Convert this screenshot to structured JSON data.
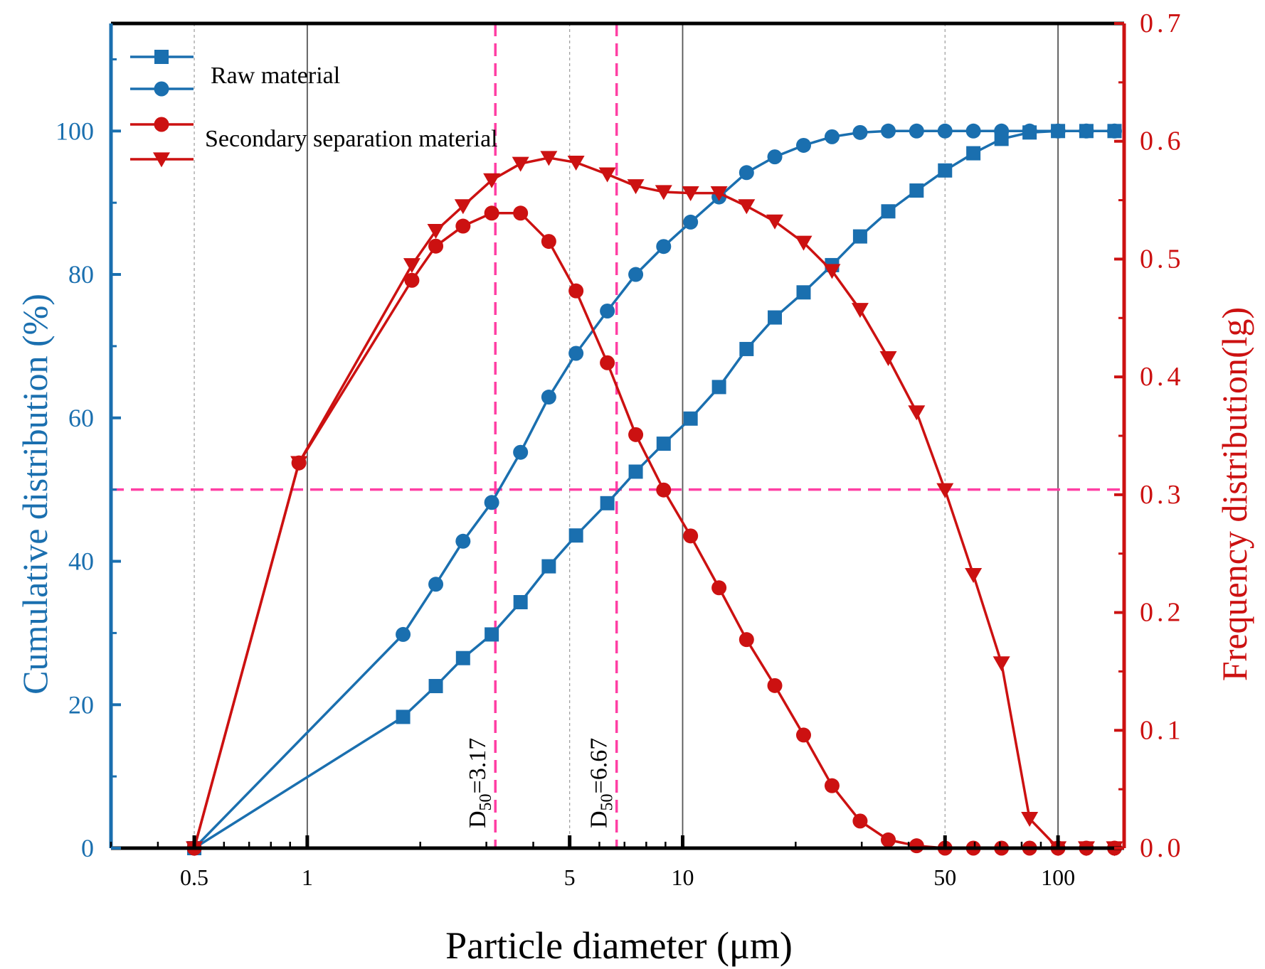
{
  "chart_data": {
    "type": "line",
    "xlabel": "Particle diameter (μm)",
    "ylabel_left": "Cumulative distribution (%)",
    "ylabel_right": "Frequency distribution(lg)",
    "x_scale": "log",
    "xlim": [
      0.3,
      150
    ],
    "ylim_left": [
      0,
      115
    ],
    "ylim_right": [
      0,
      0.7
    ],
    "x_ticks": [
      {
        "value": 0.5,
        "label": "0.5"
      },
      {
        "value": 1,
        "label": "1"
      },
      {
        "value": 5,
        "label": "5"
      },
      {
        "value": 10,
        "label": "10"
      },
      {
        "value": 50,
        "label": "50"
      },
      {
        "value": 100,
        "label": "100"
      }
    ],
    "y_left_ticks": [
      {
        "value": 0,
        "label": "0"
      },
      {
        "value": 20,
        "label": "20"
      },
      {
        "value": 40,
        "label": "40"
      },
      {
        "value": 60,
        "label": "60"
      },
      {
        "value": 80,
        "label": "80"
      },
      {
        "value": 100,
        "label": "100"
      }
    ],
    "y_right_ticks": [
      {
        "value": 0.0,
        "label": "0.0"
      },
      {
        "value": 0.1,
        "label": "0.1"
      },
      {
        "value": 0.2,
        "label": "0.2"
      },
      {
        "value": 0.3,
        "label": "0.3"
      },
      {
        "value": 0.4,
        "label": "0.4"
      },
      {
        "value": 0.5,
        "label": "0.5"
      },
      {
        "value": 0.6,
        "label": "0.6"
      },
      {
        "value": 0.7,
        "label": "0.7"
      }
    ],
    "grid": "vertical",
    "legend": {
      "position": "top-left",
      "labels": [
        "Raw material",
        "Secondary separation material"
      ]
    },
    "colors": {
      "blue": "#1a6faf",
      "red": "#cc1111",
      "reference": "#ff3fa4"
    },
    "series": [
      {
        "marker": "square",
        "axis": "left",
        "color": "#1a6faf",
        "points": [
          [
            0.5,
            0
          ],
          [
            1.8,
            18.3
          ],
          [
            2.2,
            22.6
          ],
          [
            2.6,
            26.5
          ],
          [
            3.1,
            29.8
          ],
          [
            3.7,
            34.3
          ],
          [
            4.4,
            39.3
          ],
          [
            5.2,
            43.6
          ],
          [
            6.3,
            48.1
          ],
          [
            7.5,
            52.5
          ],
          [
            8.9,
            56.4
          ],
          [
            10.5,
            59.9
          ],
          [
            12.5,
            64.3
          ],
          [
            14.8,
            69.6
          ],
          [
            17.6,
            74.0
          ],
          [
            21,
            77.5
          ],
          [
            25,
            81.3
          ],
          [
            29.7,
            85.3
          ],
          [
            35.3,
            88.8
          ],
          [
            42,
            91.7
          ],
          [
            50,
            94.5
          ],
          [
            59.5,
            96.9
          ],
          [
            70.7,
            98.9
          ],
          [
            84,
            99.8
          ],
          [
            100,
            100
          ],
          [
            119,
            100
          ],
          [
            141.4,
            100
          ]
        ]
      },
      {
        "marker": "circle",
        "axis": "left",
        "color": "#1a6faf",
        "points": [
          [
            0.5,
            0
          ],
          [
            1.8,
            29.8
          ],
          [
            2.2,
            36.8
          ],
          [
            2.6,
            42.8
          ],
          [
            3.1,
            48.2
          ],
          [
            3.7,
            55.2
          ],
          [
            4.4,
            62.9
          ],
          [
            5.2,
            69.0
          ],
          [
            6.3,
            74.9
          ],
          [
            7.5,
            80.0
          ],
          [
            8.9,
            83.9
          ],
          [
            10.5,
            87.3
          ],
          [
            12.5,
            90.8
          ],
          [
            14.8,
            94.2
          ],
          [
            17.6,
            96.4
          ],
          [
            21,
            98.0
          ],
          [
            25,
            99.2
          ],
          [
            29.7,
            99.8
          ],
          [
            35.3,
            100
          ],
          [
            42,
            100
          ],
          [
            50,
            100
          ],
          [
            59.5,
            100
          ],
          [
            70.7,
            100
          ],
          [
            84,
            100
          ],
          [
            100,
            100
          ],
          [
            119,
            100
          ],
          [
            141.4,
            100
          ]
        ]
      },
      {
        "marker": "circle",
        "axis": "right",
        "color": "#cc1111",
        "points": [
          [
            0.5,
            0
          ],
          [
            0.95,
            0.327
          ],
          [
            1.9,
            0.482
          ],
          [
            2.2,
            0.511
          ],
          [
            2.6,
            0.528
          ],
          [
            3.1,
            0.539
          ],
          [
            3.7,
            0.539
          ],
          [
            4.4,
            0.515
          ],
          [
            5.2,
            0.473
          ],
          [
            6.3,
            0.412
          ],
          [
            7.5,
            0.351
          ],
          [
            8.9,
            0.304
          ],
          [
            10.5,
            0.265
          ],
          [
            12.5,
            0.221
          ],
          [
            14.8,
            0.177
          ],
          [
            17.6,
            0.138
          ],
          [
            21,
            0.096
          ],
          [
            25,
            0.053
          ],
          [
            29.7,
            0.023
          ],
          [
            35.3,
            0.007
          ],
          [
            42,
            0.002
          ],
          [
            50,
            0
          ],
          [
            59.5,
            0
          ],
          [
            70.7,
            0
          ],
          [
            84,
            0
          ],
          [
            100,
            0
          ],
          [
            119,
            0
          ],
          [
            141.4,
            0
          ]
        ]
      },
      {
        "marker": "triangle-down",
        "axis": "right",
        "color": "#cc1111",
        "points": [
          [
            0.5,
            0
          ],
          [
            0.95,
            0.327
          ],
          [
            1.9,
            0.495
          ],
          [
            2.2,
            0.524
          ],
          [
            2.6,
            0.545
          ],
          [
            3.1,
            0.567
          ],
          [
            3.7,
            0.581
          ],
          [
            4.4,
            0.586
          ],
          [
            5.2,
            0.582
          ],
          [
            6.3,
            0.572
          ],
          [
            7.5,
            0.562
          ],
          [
            8.9,
            0.557
          ],
          [
            10.5,
            0.556
          ],
          [
            12.5,
            0.556
          ],
          [
            14.8,
            0.545
          ],
          [
            17.6,
            0.532
          ],
          [
            21,
            0.514
          ],
          [
            25,
            0.49
          ],
          [
            29.7,
            0.457
          ],
          [
            35.3,
            0.416
          ],
          [
            42,
            0.37
          ],
          [
            50,
            0.304
          ],
          [
            59.5,
            0.232
          ],
          [
            70.7,
            0.157
          ],
          [
            84,
            0.025
          ],
          [
            100,
            0
          ],
          [
            119,
            0
          ],
          [
            141.4,
            0
          ]
        ]
      }
    ],
    "reference_lines": {
      "horizontal_y_left": 50,
      "vertical_x": [
        3.17,
        6.67
      ]
    },
    "annotations": [
      {
        "x": 3.17,
        "base": "D",
        "sub": "50",
        "rest": "=3.17"
      },
      {
        "x": 6.67,
        "base": "D",
        "sub": "50",
        "rest": "=6.67"
      }
    ]
  }
}
